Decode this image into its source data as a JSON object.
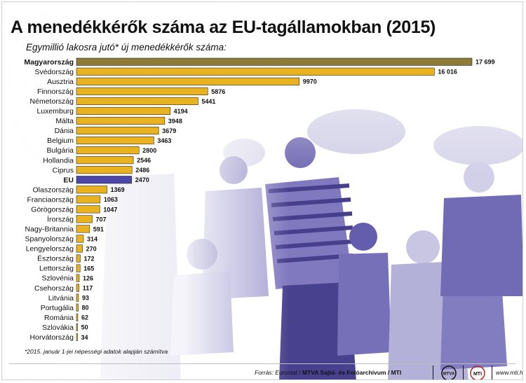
{
  "title": "A menedékkérők száma az EU-tagállamokban (2015)",
  "subtitle": "Egymillió lakosra jutó* új menedékkérők száma:",
  "footnote": "*2015. január 1-jei népességi adatok alapján számítva",
  "footer": {
    "source_label": "Forrás: Eurostat",
    "source_name": "MTVA Sajtó- és Fotóarchívum / MTI",
    "logo1": "MTVA",
    "logo2": "MTI",
    "website": "www.mti.hu"
  },
  "colors": {
    "bar": "#e9b320",
    "bar_highlight": "#8f7b38",
    "bar_eu": "#4c47a8",
    "photo_tint": "#4a3f9e"
  },
  "chart_data": {
    "type": "bar",
    "orientation": "horizontal",
    "title": "A menedékkérők száma az EU-tagállamokban (2015)",
    "subtitle": "Egymillió lakosra jutó* új menedékkérők száma:",
    "categories": [
      "Magyarország",
      "Svédország",
      "Ausztria",
      "Finnország",
      "Németország",
      "Luxemburg",
      "Málta",
      "Dánia",
      "Belgium",
      "Bulgária",
      "Hollandia",
      "Ciprus",
      "EU",
      "Olaszország",
      "Franciaország",
      "Görögország",
      "Írország",
      "Nagy-Britannia",
      "Spanyolország",
      "Lengyelország",
      "Észtország",
      "Lettország",
      "Szlovénia",
      "Csehország",
      "Litvánia",
      "Portugália",
      "Románia",
      "Szlovákia",
      "Horvátország"
    ],
    "values": [
      17699,
      16016,
      9970,
      5876,
      5441,
      4194,
      3948,
      3679,
      3463,
      2800,
      2546,
      2486,
      2470,
      1369,
      1063,
      1047,
      707,
      591,
      314,
      270,
      172,
      165,
      126,
      117,
      93,
      80,
      62,
      50,
      34
    ],
    "value_labels": [
      "17 699",
      "16 016",
      "9970",
      "5876",
      "5441",
      "4194",
      "3948",
      "3679",
      "3463",
      "2800",
      "2546",
      "2486",
      "2470",
      "1369",
      "1063",
      "1047",
      "707",
      "591",
      "314",
      "270",
      "172",
      "165",
      "126",
      "117",
      "93",
      "80",
      "62",
      "50",
      "34"
    ],
    "bold_categories": [
      "Magyarország",
      "EU"
    ],
    "highlight": {
      "Magyarország": "dark-gold",
      "EU": "blue"
    },
    "xlim": [
      0,
      17699
    ],
    "grid": false,
    "axes_visible": false
  }
}
